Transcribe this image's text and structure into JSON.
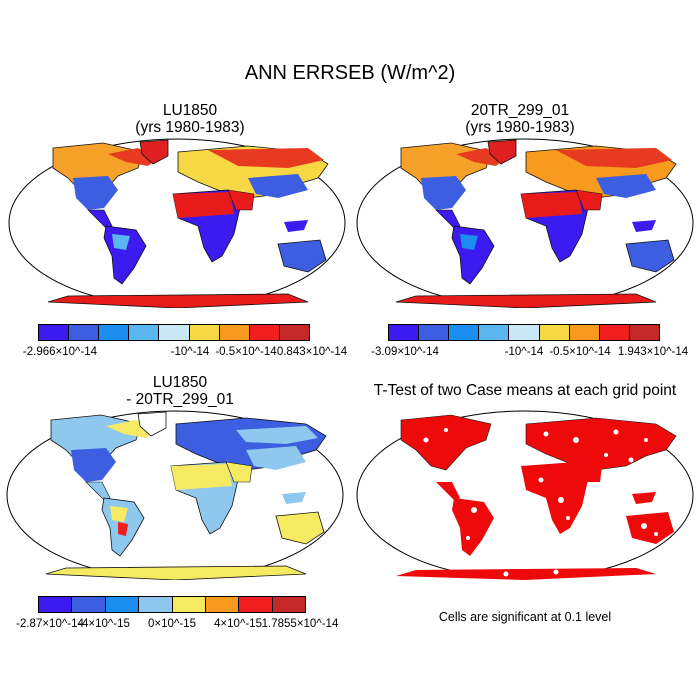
{
  "figure_title": "ANN ERRSEB (W/m^2)",
  "panels": {
    "top_left": {
      "title_line1": "LU1850",
      "title_line2": "(yrs 1980-1983)",
      "colors": [
        "#3b1bf0",
        "#3d5ee0",
        "#1c8ef0",
        "#5ab6ee",
        "#c8e8f8",
        "#f6d845",
        "#f89a1e",
        "#f01e1e",
        "#c42828"
      ],
      "tick_labels": [
        "-2.966×10^-14",
        "-10^-14",
        "-0.5×10^-14",
        "0.843×10^-14"
      ]
    },
    "top_right": {
      "title_line1": "20TR_299_01",
      "title_line2": "(yrs 1980-1983)",
      "colors": [
        "#3b1bf0",
        "#3d5ee0",
        "#1c8ef0",
        "#5ab6ee",
        "#c8e8f8",
        "#f6d845",
        "#f89a1e",
        "#f01e1e",
        "#c42828"
      ],
      "tick_labels": [
        "-3.09×10^-14",
        "-10^-14",
        "-0.5×10^-14",
        "1.943×10^-14"
      ]
    },
    "bottom_left": {
      "title_line1": "LU1850",
      "title_line2": "- 20TR_299_01",
      "colors": [
        "#3b1bf0",
        "#3d5ee0",
        "#1c8ef0",
        "#8fc8ee",
        "#f6ea63",
        "#f89a1e",
        "#f01e1e",
        "#c42828"
      ],
      "tick_labels": [
        "-2.87×10^-14",
        "-4×10^-15",
        "0×10^-15",
        "4×10^-15",
        "1.7855×10^-14"
      ]
    },
    "bottom_right": {
      "title": "T-Test of two Case means at each grid point",
      "note": "Cells are significant at 0.1 level"
    }
  }
}
